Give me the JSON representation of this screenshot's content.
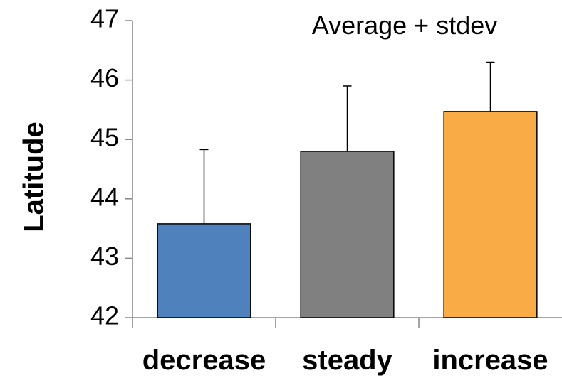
{
  "chart_data": {
    "type": "bar",
    "title": "Average + stdev",
    "xlabel": "",
    "ylabel": "Latitude",
    "categories": [
      "decrease",
      "steady",
      "increase"
    ],
    "values": [
      43.58,
      44.8,
      45.47
    ],
    "errors": [
      1.25,
      1.1,
      0.83
    ],
    "colors": [
      "#4f81bd",
      "#808080",
      "#f9ac46"
    ],
    "ylim": [
      42,
      47
    ],
    "yticks": [
      "42",
      "43",
      "44",
      "45",
      "46",
      "47"
    ],
    "grid": false,
    "legend": "none"
  }
}
